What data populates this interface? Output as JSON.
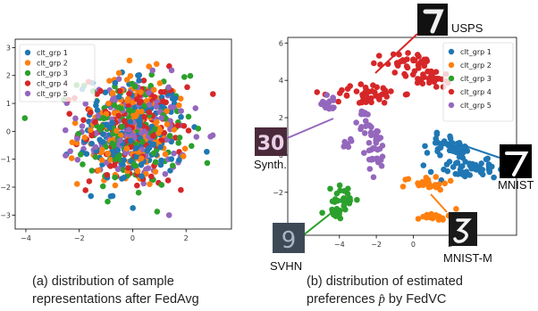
{
  "captions": {
    "left_line1": "(a) distribution of sample",
    "left_line2": "representations after FedAvg",
    "right_line1": "(b) distribution of estimated",
    "right_line2_pre": "preferences ",
    "right_line2_math": "p̂",
    "right_line2_post": " by FedVC"
  },
  "legend_labels": [
    "clt_grp 1",
    "clt_grp 2",
    "clt_grp 3",
    "clt_grp 4",
    "clt_grp 5"
  ],
  "colors": [
    "#1f77b4",
    "#ff7f0e",
    "#2ca02c",
    "#d62728",
    "#9467bd"
  ],
  "chart_data": [
    {
      "type": "scatter",
      "title": "",
      "xlabel": "",
      "ylabel": "",
      "xlim": [
        -4.4,
        3.7
      ],
      "ylim": [
        -3.5,
        3.3
      ],
      "xticks": [
        "-4",
        "-2",
        "0",
        "2"
      ],
      "yticks": [
        "3",
        "2",
        "1",
        "0",
        "-1",
        "-2",
        "-3"
      ],
      "grid": false,
      "legend": "top-left",
      "series_count": 5,
      "distribution": "isotropic gaussian centered at (0, 0), std ~1, all groups overlapping",
      "points_per_group_approx": 150
    },
    {
      "type": "scatter",
      "title": "",
      "xlabel": "",
      "ylabel": "",
      "xlim": [
        -6.8,
        5.6
      ],
      "ylim": [
        -4.3,
        6.3
      ],
      "xticks": [
        "-4",
        "-2",
        "0",
        "2"
      ],
      "yticks": [
        "6",
        "4",
        "2",
        "0",
        "-2"
      ],
      "grid": false,
      "legend": "top-right",
      "clusters": [
        {
          "series": "clt_grp 1",
          "center": [
            3.4,
            -0.1
          ],
          "spread": [
            1.0,
            0.6
          ],
          "annotation": "MNIST"
        },
        {
          "series": "clt_grp 2",
          "center": [
            0.8,
            -1.9
          ],
          "spread": [
            1.2,
            1.0
          ],
          "annotation": "MNIST-M"
        },
        {
          "series": "clt_grp 3",
          "center": [
            -3.5,
            -2.5
          ],
          "spread": [
            0.8,
            0.6
          ],
          "annotation": "SVHN"
        },
        {
          "series": "clt_grp 4",
          "center": [
            -1.2,
            4.3
          ],
          "spread": [
            2.4,
            1.0
          ],
          "annotation": "USPS"
        },
        {
          "series": "clt_grp 5",
          "center": [
            -3.1,
            1.6
          ],
          "spread": [
            1.1,
            1.4
          ],
          "annotation": "Synth."
        }
      ]
    }
  ],
  "annotations": [
    "USPS",
    "Synth.",
    "MNIST",
    "MNIST-M",
    "SVHN"
  ]
}
